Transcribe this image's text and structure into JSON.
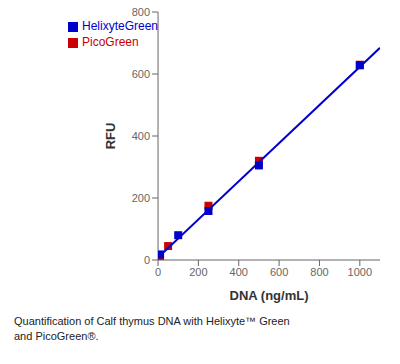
{
  "chart_data": {
    "type": "scatter",
    "xlabel": "DNA (ng/mL)",
    "ylabel": "RFU",
    "annotations": [
      "Quantification of Calf thymus DNA with Helixyte™ Green\nand PicoGreen®."
    ],
    "series": [
      {
        "name": "PicoGreen",
        "type": "scatter",
        "marker": "square",
        "color": "#cc0000",
        "x": [
          10,
          50,
          250,
          500,
          1000
        ],
        "values": [
          13,
          45,
          175,
          320,
          630
        ]
      },
      {
        "name": "HelixyteGreen",
        "type": "scatter",
        "marker": "square",
        "color": "#0000cc",
        "x": [
          10,
          100,
          250,
          500,
          1000
        ],
        "values": [
          18,
          80,
          158,
          305,
          628
        ]
      },
      {
        "type": "line",
        "line_style": "solid",
        "color": "#0000cc",
        "x": [
          0,
          1100
        ],
        "values": [
          8,
          684.5
        ]
      }
    ],
    "xlim": [
      0,
      1100
    ],
    "ylim": [
      0,
      800
    ],
    "xticks": [
      0,
      200,
      400,
      600,
      800,
      1000
    ],
    "yticks": [
      0,
      200,
      400,
      600,
      800
    ],
    "grid": false,
    "legend": "upper left"
  }
}
